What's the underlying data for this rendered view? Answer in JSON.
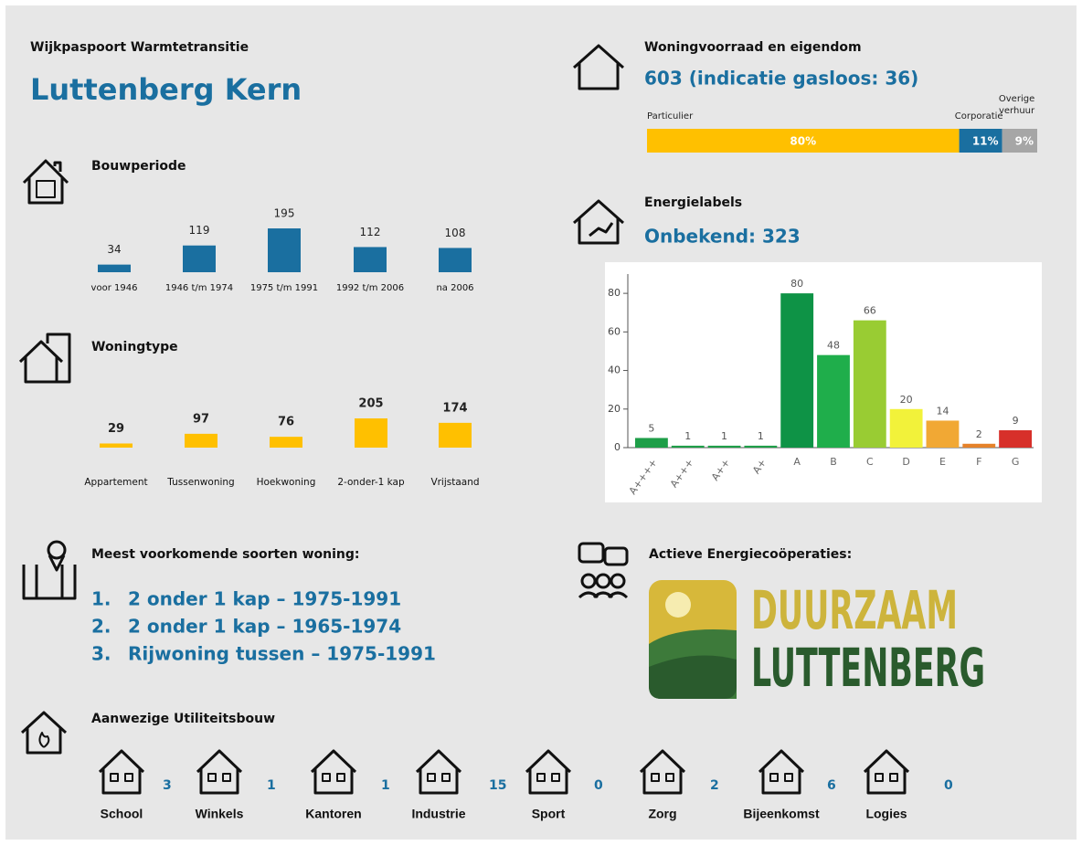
{
  "header": {
    "subtitle": "Wijkpaspoort Warmtetransitie",
    "title": "Luttenberg Kern"
  },
  "chart_data": [
    {
      "type": "bar",
      "title": "Bouwperiode",
      "categories": [
        "voor 1946",
        "1946 t/m 1974",
        "1975 t/m 1991",
        "1992 t/m 2006",
        "na 2006"
      ],
      "values": [
        34,
        119,
        195,
        112,
        108
      ],
      "color": "#1a6fa0"
    },
    {
      "type": "bar",
      "title": "Woningtype",
      "categories": [
        "Appartement",
        "Tussenwoning",
        "Hoekwoning",
        "2-onder-1 kap",
        "Vrijstaand"
      ],
      "values": [
        29,
        97,
        76,
        205,
        174
      ],
      "color": "#ffc000"
    },
    {
      "type": "stacked-bar",
      "title": "Woningvoorraad en eigendom",
      "subtitle": "603 (indicatie gasloos: 36)",
      "categories": [
        "Particulier",
        "Corporatie",
        "Overige verhuur"
      ],
      "values": [
        80,
        11,
        9
      ],
      "value_labels": [
        "80%",
        "11%",
        "9%"
      ],
      "colors": [
        "#ffc000",
        "#1a6fa0",
        "#a6a6a6"
      ]
    },
    {
      "type": "column",
      "title": "Energielabels",
      "subtitle": "Onbekend: 323",
      "categories": [
        "A++++",
        "A+++",
        "A++",
        "A+",
        "A",
        "B",
        "C",
        "D",
        "E",
        "F",
        "G"
      ],
      "values": [
        5,
        1,
        1,
        1,
        80,
        48,
        66,
        20,
        14,
        2,
        9
      ],
      "colors": [
        "#1e9e48",
        "#1e9e48",
        "#1e9e48",
        "#1e9e48",
        "#0e9346",
        "#1fae4b",
        "#99cc33",
        "#f2f23a",
        "#f1a834",
        "#e5822a",
        "#d7302a"
      ],
      "ylim": [
        0,
        90
      ],
      "yticks": [
        0,
        20,
        40,
        60,
        80
      ]
    }
  ],
  "common_types": {
    "title": "Meest voorkomende soorten woning:",
    "items": [
      {
        "number": "1.",
        "text": "2 onder 1 kap – 1975-1991"
      },
      {
        "number": "2.",
        "text": "2 onder 1 kap – 1965-1974"
      },
      {
        "number": "3.",
        "text": "Rijwoning tussen – 1975-1991"
      }
    ]
  },
  "cooperations": {
    "title": "Actieve Energiecoöperaties:",
    "logo": [
      "DUURZAAM",
      "LUTTENBERG"
    ]
  },
  "utility": {
    "title": "Aanwezige Utiliteitsbouw",
    "items": [
      {
        "name": "School",
        "count": 3
      },
      {
        "name": "Winkels",
        "count": 1
      },
      {
        "name": "Kantoren",
        "count": 1
      },
      {
        "name": "Industrie",
        "count": 15
      },
      {
        "name": "Sport",
        "count": 0
      },
      {
        "name": "Zorg",
        "count": 2
      },
      {
        "name": "Bijeenkomst",
        "count": 6
      },
      {
        "name": "Logies",
        "count": 0
      }
    ]
  }
}
